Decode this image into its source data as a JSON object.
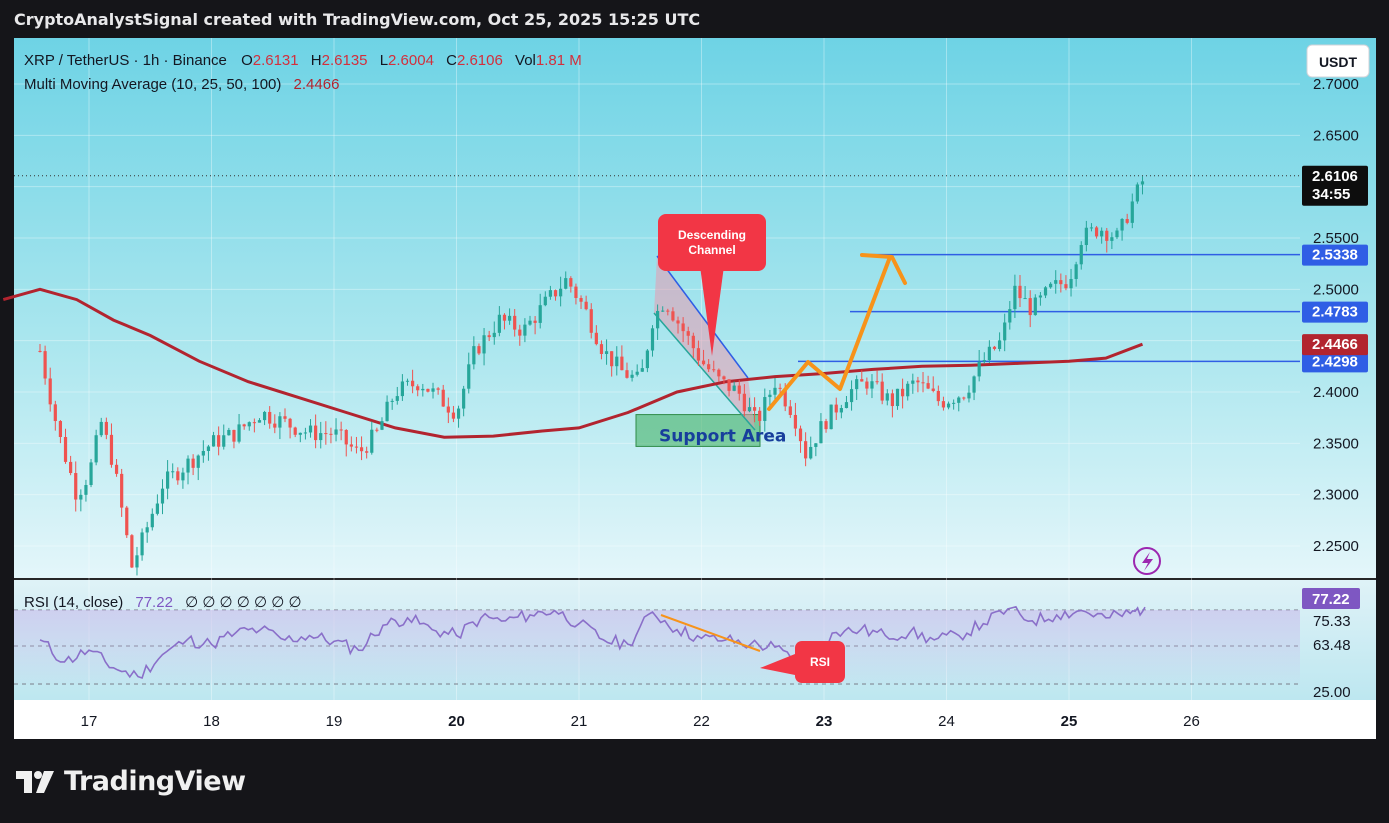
{
  "header": {
    "credit": "CryptoAnalystSignal created with TradingView.com, Oct 25, 2025 15:25 UTC"
  },
  "legend": {
    "symbol": "XRP / TetherUS · 1h · Binance",
    "o_label": "O",
    "o_value": "2.6131",
    "h_label": "H",
    "h_value": "2.6135",
    "l_label": "L",
    "l_value": "2.6004",
    "c_label": "C",
    "c_value": "2.6106",
    "vol_label": "Vol",
    "vol_value": "1.81 M",
    "ma_label": "Multi Moving Average (10, 25, 50, 100)",
    "ma_value": "2.4466"
  },
  "currency_button": "USDT",
  "price_axis": {
    "ticks": [
      "2.7000",
      "2.6500",
      "2.5500",
      "2.5000",
      "2.4000",
      "2.3500",
      "2.3000",
      "2.2500"
    ],
    "last_price": "2.6106",
    "countdown": "34:55",
    "level_labels": [
      "2.5338",
      "2.4783",
      "2.4298"
    ],
    "ma_label": "2.4466"
  },
  "time_axis": {
    "labels": [
      "17",
      "18",
      "19",
      "20",
      "21",
      "22",
      "23",
      "24",
      "25",
      "26"
    ]
  },
  "annotations": {
    "descending_channel": "Descending\nChannel",
    "support_area": "Support Area",
    "rsi_callout": "RSI"
  },
  "rsi_pane": {
    "label": "RSI (14, close)",
    "value": "77.22",
    "placeholders": "∅ ∅ ∅ ∅ ∅ ∅ ∅",
    "axis_ticks": [
      "75.33",
      "63.48",
      "25.00"
    ],
    "current": "77.22"
  },
  "colors": {
    "up": "#26a69a",
    "down": "#ef5350",
    "ma": "#b2242f",
    "level": "#2f5ee5",
    "arrow": "#f7931a",
    "callout": "#f23645",
    "rsi": "#8a6fc9",
    "rsi_badge": "#7e57c2"
  },
  "chart_data": {
    "type": "candlestick",
    "symbol": "XRP / TetherUS",
    "interval": "1h",
    "exchange": "Binance",
    "ylim": [
      2.22,
      2.75
    ],
    "x_labels": [
      "17",
      "18",
      "19",
      "20",
      "21",
      "22",
      "23",
      "24",
      "25",
      "26"
    ],
    "price_path": [
      [
        16.6,
        2.44
      ],
      [
        16.75,
        2.36
      ],
      [
        16.9,
        2.3
      ],
      [
        17.0,
        2.32
      ],
      [
        17.1,
        2.37
      ],
      [
        17.2,
        2.33
      ],
      [
        17.35,
        2.23
      ],
      [
        17.45,
        2.26
      ],
      [
        17.6,
        2.31
      ],
      [
        17.8,
        2.33
      ],
      [
        18.0,
        2.35
      ],
      [
        18.2,
        2.36
      ],
      [
        18.4,
        2.38
      ],
      [
        18.6,
        2.37
      ],
      [
        18.8,
        2.36
      ],
      [
        19.0,
        2.36
      ],
      [
        19.2,
        2.34
      ],
      [
        19.35,
        2.36
      ],
      [
        19.5,
        2.4
      ],
      [
        19.7,
        2.41
      ],
      [
        19.9,
        2.39
      ],
      [
        20.0,
        2.38
      ],
      [
        20.15,
        2.44
      ],
      [
        20.35,
        2.47
      ],
      [
        20.55,
        2.46
      ],
      [
        20.75,
        2.49
      ],
      [
        20.9,
        2.51
      ],
      [
        21.05,
        2.48
      ],
      [
        21.2,
        2.44
      ],
      [
        21.35,
        2.42
      ],
      [
        21.5,
        2.41
      ],
      [
        21.6,
        2.47
      ],
      [
        21.7,
        2.49
      ],
      [
        21.85,
        2.46
      ],
      [
        22.0,
        2.43
      ],
      [
        22.15,
        2.41
      ],
      [
        22.3,
        2.4
      ],
      [
        22.45,
        2.37
      ],
      [
        22.6,
        2.41
      ],
      [
        22.75,
        2.38
      ],
      [
        22.85,
        2.34
      ],
      [
        23.0,
        2.37
      ],
      [
        23.2,
        2.4
      ],
      [
        23.35,
        2.41
      ],
      [
        23.55,
        2.39
      ],
      [
        23.75,
        2.41
      ],
      [
        23.95,
        2.39
      ],
      [
        24.15,
        2.4
      ],
      [
        24.3,
        2.43
      ],
      [
        24.45,
        2.45
      ],
      [
        24.55,
        2.5
      ],
      [
        24.7,
        2.48
      ],
      [
        24.85,
        2.5
      ],
      [
        25.0,
        2.51
      ],
      [
        25.1,
        2.55
      ],
      [
        25.25,
        2.56
      ],
      [
        25.4,
        2.55
      ],
      [
        25.5,
        2.58
      ],
      [
        25.62,
        2.61
      ]
    ],
    "moving_average": [
      [
        16.3,
        2.49
      ],
      [
        16.6,
        2.5
      ],
      [
        16.9,
        2.49
      ],
      [
        17.2,
        2.47
      ],
      [
        17.5,
        2.455
      ],
      [
        17.9,
        2.43
      ],
      [
        18.3,
        2.41
      ],
      [
        18.7,
        2.395
      ],
      [
        19.1,
        2.38
      ],
      [
        19.5,
        2.365
      ],
      [
        19.9,
        2.356
      ],
      [
        20.3,
        2.357
      ],
      [
        20.7,
        2.362
      ],
      [
        21.0,
        2.365
      ],
      [
        21.4,
        2.38
      ],
      [
        21.8,
        2.4
      ],
      [
        22.2,
        2.41
      ],
      [
        22.6,
        2.415
      ],
      [
        23.0,
        2.418
      ],
      [
        23.4,
        2.422
      ],
      [
        23.8,
        2.425
      ],
      [
        24.2,
        2.426
      ],
      [
        24.6,
        2.428
      ],
      [
        25.0,
        2.43
      ],
      [
        25.3,
        2.433
      ],
      [
        25.6,
        2.4466
      ]
    ],
    "horizontal_levels": [
      2.5338,
      2.4783,
      2.4298
    ],
    "last_price": 2.6106,
    "rsi": {
      "period": 14,
      "value": 77.22,
      "levels": [
        75.33,
        63.48,
        25.0
      ],
      "path": [
        [
          16.6,
          55
        ],
        [
          16.8,
          40
        ],
        [
          17.0,
          48
        ],
        [
          17.2,
          36
        ],
        [
          17.4,
          30
        ],
        [
          17.6,
          45
        ],
        [
          17.8,
          55
        ],
        [
          18.0,
          52
        ],
        [
          18.2,
          60
        ],
        [
          18.4,
          62
        ],
        [
          18.6,
          55
        ],
        [
          18.8,
          58
        ],
        [
          19.0,
          54
        ],
        [
          19.2,
          48
        ],
        [
          19.4,
          65
        ],
        [
          19.6,
          70
        ],
        [
          19.8,
          62
        ],
        [
          20.0,
          58
        ],
        [
          20.2,
          70
        ],
        [
          20.4,
          68
        ],
        [
          20.6,
          72
        ],
        [
          20.8,
          75
        ],
        [
          21.0,
          66
        ],
        [
          21.2,
          55
        ],
        [
          21.4,
          52
        ],
        [
          21.6,
          74
        ],
        [
          21.8,
          62
        ],
        [
          22.0,
          56
        ],
        [
          22.2,
          55
        ],
        [
          22.4,
          52
        ],
        [
          22.6,
          50
        ],
        [
          22.8,
          38
        ],
        [
          22.9,
          48
        ],
        [
          23.1,
          60
        ],
        [
          23.3,
          62
        ],
        [
          23.5,
          58
        ],
        [
          23.7,
          60
        ],
        [
          23.9,
          55
        ],
        [
          24.1,
          58
        ],
        [
          24.3,
          66
        ],
        [
          24.5,
          76
        ],
        [
          24.7,
          68
        ],
        [
          24.9,
          72
        ],
        [
          25.1,
          75
        ],
        [
          25.3,
          70
        ],
        [
          25.5,
          73
        ],
        [
          25.62,
          77.22
        ]
      ]
    },
    "annotations": [
      {
        "type": "channel",
        "label": "Descending Channel",
        "from_x": 21.63,
        "to_x": 22.38
      },
      {
        "type": "zone",
        "label": "Support Area",
        "y_range": [
          2.35,
          2.38
        ],
        "x_range": [
          21.47,
          22.47
        ]
      },
      {
        "type": "arrow",
        "points": [
          [
            22.52,
            2.38
          ],
          [
            22.88,
            2.43
          ],
          [
            23.15,
            2.4
          ],
          [
            23.55,
            2.535
          ]
        ]
      },
      {
        "type": "divergence",
        "label": "RSI",
        "rsi_from": [
          21.65,
          75
        ],
        "rsi_to": [
          22.45,
          60
        ]
      }
    ]
  }
}
